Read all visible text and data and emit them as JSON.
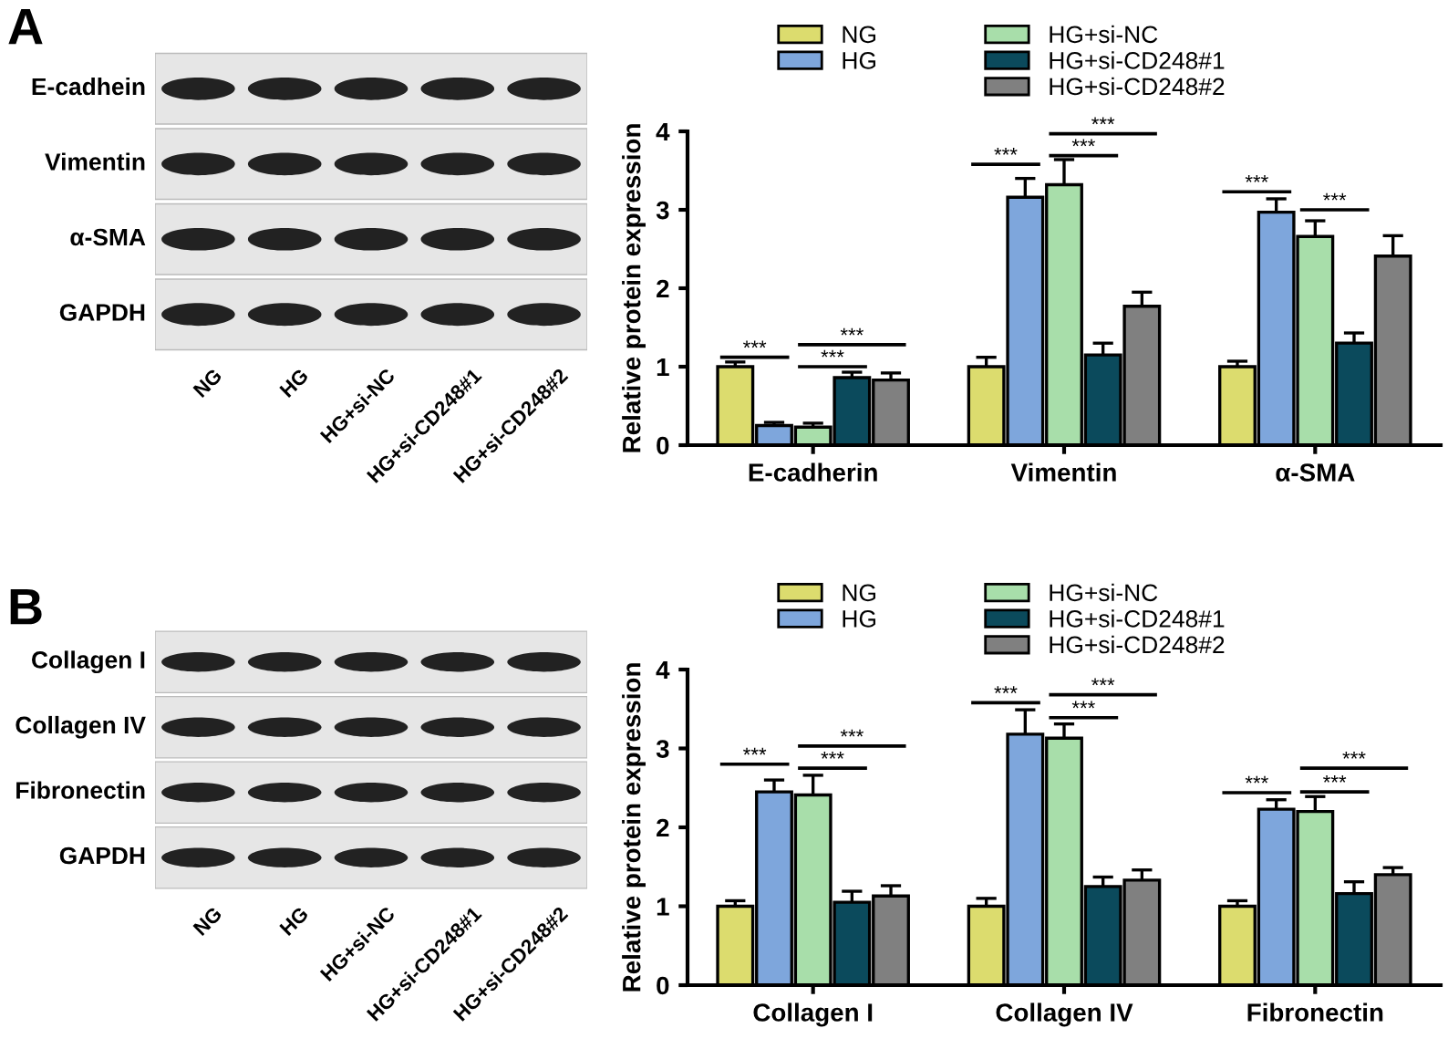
{
  "chart_data": [
    {
      "type": "bar",
      "ylabel": "Relative protein expression",
      "categories": [
        "E-cadherin",
        "Vimentin",
        "α-SMA"
      ],
      "ylim": [
        0,
        4
      ],
      "yticks": [
        0,
        1,
        2,
        3,
        4
      ],
      "grid": false,
      "legend": "top",
      "series": [
        {
          "name": "NG",
          "color": "#dcdc6e",
          "values": [
            1.0,
            1.0,
            1.0
          ],
          "errors": [
            0.06,
            0.12,
            0.07
          ]
        },
        {
          "name": "HG",
          "color": "#7ea6dc",
          "values": [
            0.25,
            3.16,
            2.97
          ],
          "errors": [
            0.04,
            0.24,
            0.17
          ]
        },
        {
          "name": "HG+si-NC",
          "color": "#a8deaa",
          "values": [
            0.23,
            3.32,
            2.66
          ],
          "errors": [
            0.05,
            0.32,
            0.2
          ]
        },
        {
          "name": "HG+si-CD248#1",
          "color": "#0b4a5c",
          "values": [
            0.86,
            1.15,
            1.3
          ],
          "errors": [
            0.07,
            0.15,
            0.13
          ]
        },
        {
          "name": "HG+si-CD248#2",
          "color": "#808080",
          "values": [
            0.83,
            1.77,
            2.41
          ],
          "errors": [
            0.09,
            0.18,
            0.26
          ]
        }
      ],
      "annotations": [
        "A",
        "E-cadhein",
        "Vimentin",
        "α-SMA",
        "GAPDH",
        "NG",
        "HG",
        "HG+si-NC",
        "HG+si-CD248#1",
        "HG+si-CD248#2",
        "***",
        "***",
        "***",
        "***",
        "***",
        "***",
        "***",
        "***"
      ]
    },
    {
      "type": "bar",
      "ylabel": "Relative protein expression",
      "categories": [
        "Collagen I",
        "Collagen IV",
        "Fibronectin"
      ],
      "ylim": [
        0,
        4
      ],
      "yticks": [
        0,
        1,
        2,
        3,
        4
      ],
      "grid": false,
      "legend": "top",
      "series": [
        {
          "name": "NG",
          "color": "#dcdc6e",
          "values": [
            1.0,
            1.0,
            1.0
          ],
          "errors": [
            0.07,
            0.1,
            0.07
          ]
        },
        {
          "name": "HG",
          "color": "#7ea6dc",
          "values": [
            2.45,
            3.18,
            2.23
          ],
          "errors": [
            0.15,
            0.31,
            0.12
          ]
        },
        {
          "name": "HG+si-NC",
          "color": "#a8deaa",
          "values": [
            2.41,
            3.13,
            2.2
          ],
          "errors": [
            0.25,
            0.18,
            0.19
          ]
        },
        {
          "name": "HG+si-CD248#1",
          "color": "#0b4a5c",
          "values": [
            1.05,
            1.25,
            1.16
          ],
          "errors": [
            0.14,
            0.12,
            0.15
          ]
        },
        {
          "name": "HG+si-CD248#2",
          "color": "#808080",
          "values": [
            1.13,
            1.33,
            1.4
          ],
          "errors": [
            0.13,
            0.13,
            0.09
          ]
        }
      ],
      "annotations": [
        "B",
        "Collagen I",
        "Collagen IV",
        "Fibronectin",
        "GAPDH",
        "NG",
        "HG",
        "HG+si-NC",
        "HG+si-CD248#1",
        "HG+si-CD248#2",
        "***",
        "***",
        "***",
        "***",
        "***",
        "***",
        "***",
        "***",
        "***"
      ]
    }
  ]
}
